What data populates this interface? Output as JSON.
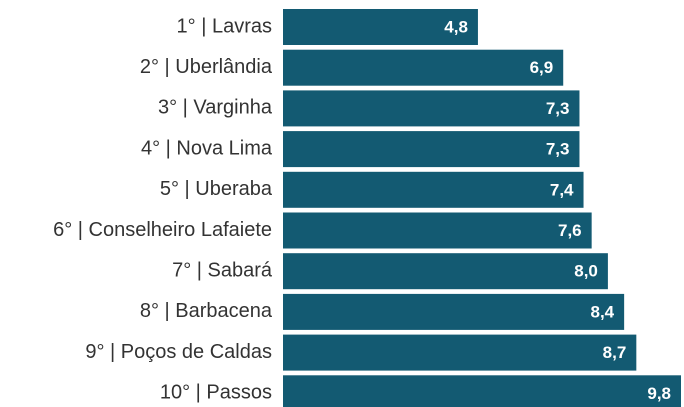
{
  "chart_data": {
    "type": "bar",
    "orientation": "horizontal",
    "categories": [
      "1° | Lavras",
      "2° | Uberlândia",
      "3° | Varginha",
      "4° | Nova Lima",
      "5° | Uberaba",
      "6° | Conselheiro Lafaiete",
      "7° | Sabará",
      "8° | Barbacena",
      "9° | Poços de Caldas",
      "10° | Passos"
    ],
    "values": [
      4.8,
      6.9,
      7.3,
      7.3,
      7.4,
      7.6,
      8.0,
      8.4,
      8.7,
      9.8
    ],
    "value_labels": [
      "4,8",
      "6,9",
      "7,3",
      "7,3",
      "7,4",
      "7,6",
      "8,0",
      "8,4",
      "8,7",
      "9,8"
    ],
    "color": "#135a72"
  }
}
